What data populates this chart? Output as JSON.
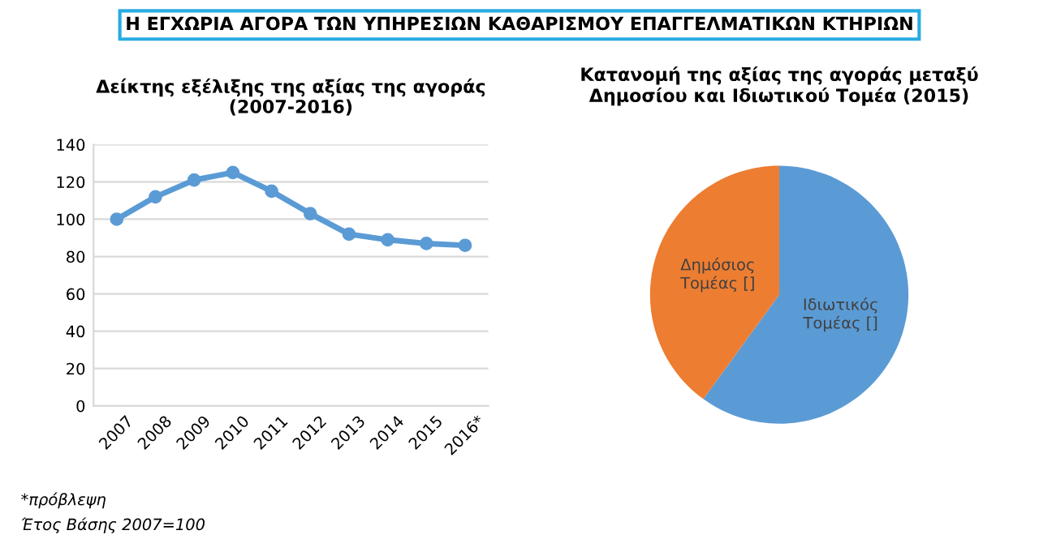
{
  "chart_data": [
    {
      "type": "line",
      "title": "Η ΕΓΧΩΡΙΑ ΑΓΟΡΑ ΤΩΝ ΥΠΗΡΕΣΙΩΝ ΚΑΘΑΡΙΣΜΟΥ ΕΠΑΓΓΕΛΜΑΤΙΚΩΝ ΚΤΗΡΙΩΝ",
      "subtitle": "Δείκτης εξέλιξης της αξίας της αγοράς\n(2007-2016)",
      "categories": [
        "2007",
        "2008",
        "2009",
        "2010",
        "2011",
        "2012",
        "2013",
        "2014",
        "2015",
        "2016*"
      ],
      "series": [
        {
          "color": "#5b9bd5",
          "values": [
            100,
            112,
            121,
            125,
            115,
            103,
            92,
            89,
            87,
            86
          ]
        }
      ],
      "ylim": [
        0,
        140
      ],
      "yticks": [
        0,
        20,
        40,
        60,
        80,
        100,
        120,
        140
      ],
      "grid": "y",
      "marker": "circle",
      "line_style": "solid",
      "annotations": [
        "*πρόβλεψη",
        "Έτος Βάσης 2007=100"
      ]
    },
    {
      "type": "pie",
      "title": "Κατανομή της αξίας της αγοράς μεταξύ\nΔημοσίου και Ιδιωτικού Τομέα (2015)",
      "categories": [
        "Ιδιωτικός\nΤομέας []",
        "Δημόσιος\nΤομέας []"
      ],
      "values": [
        60,
        40
      ],
      "colors": [
        "#5b9bd5",
        "#ed7d31"
      ]
    }
  ]
}
